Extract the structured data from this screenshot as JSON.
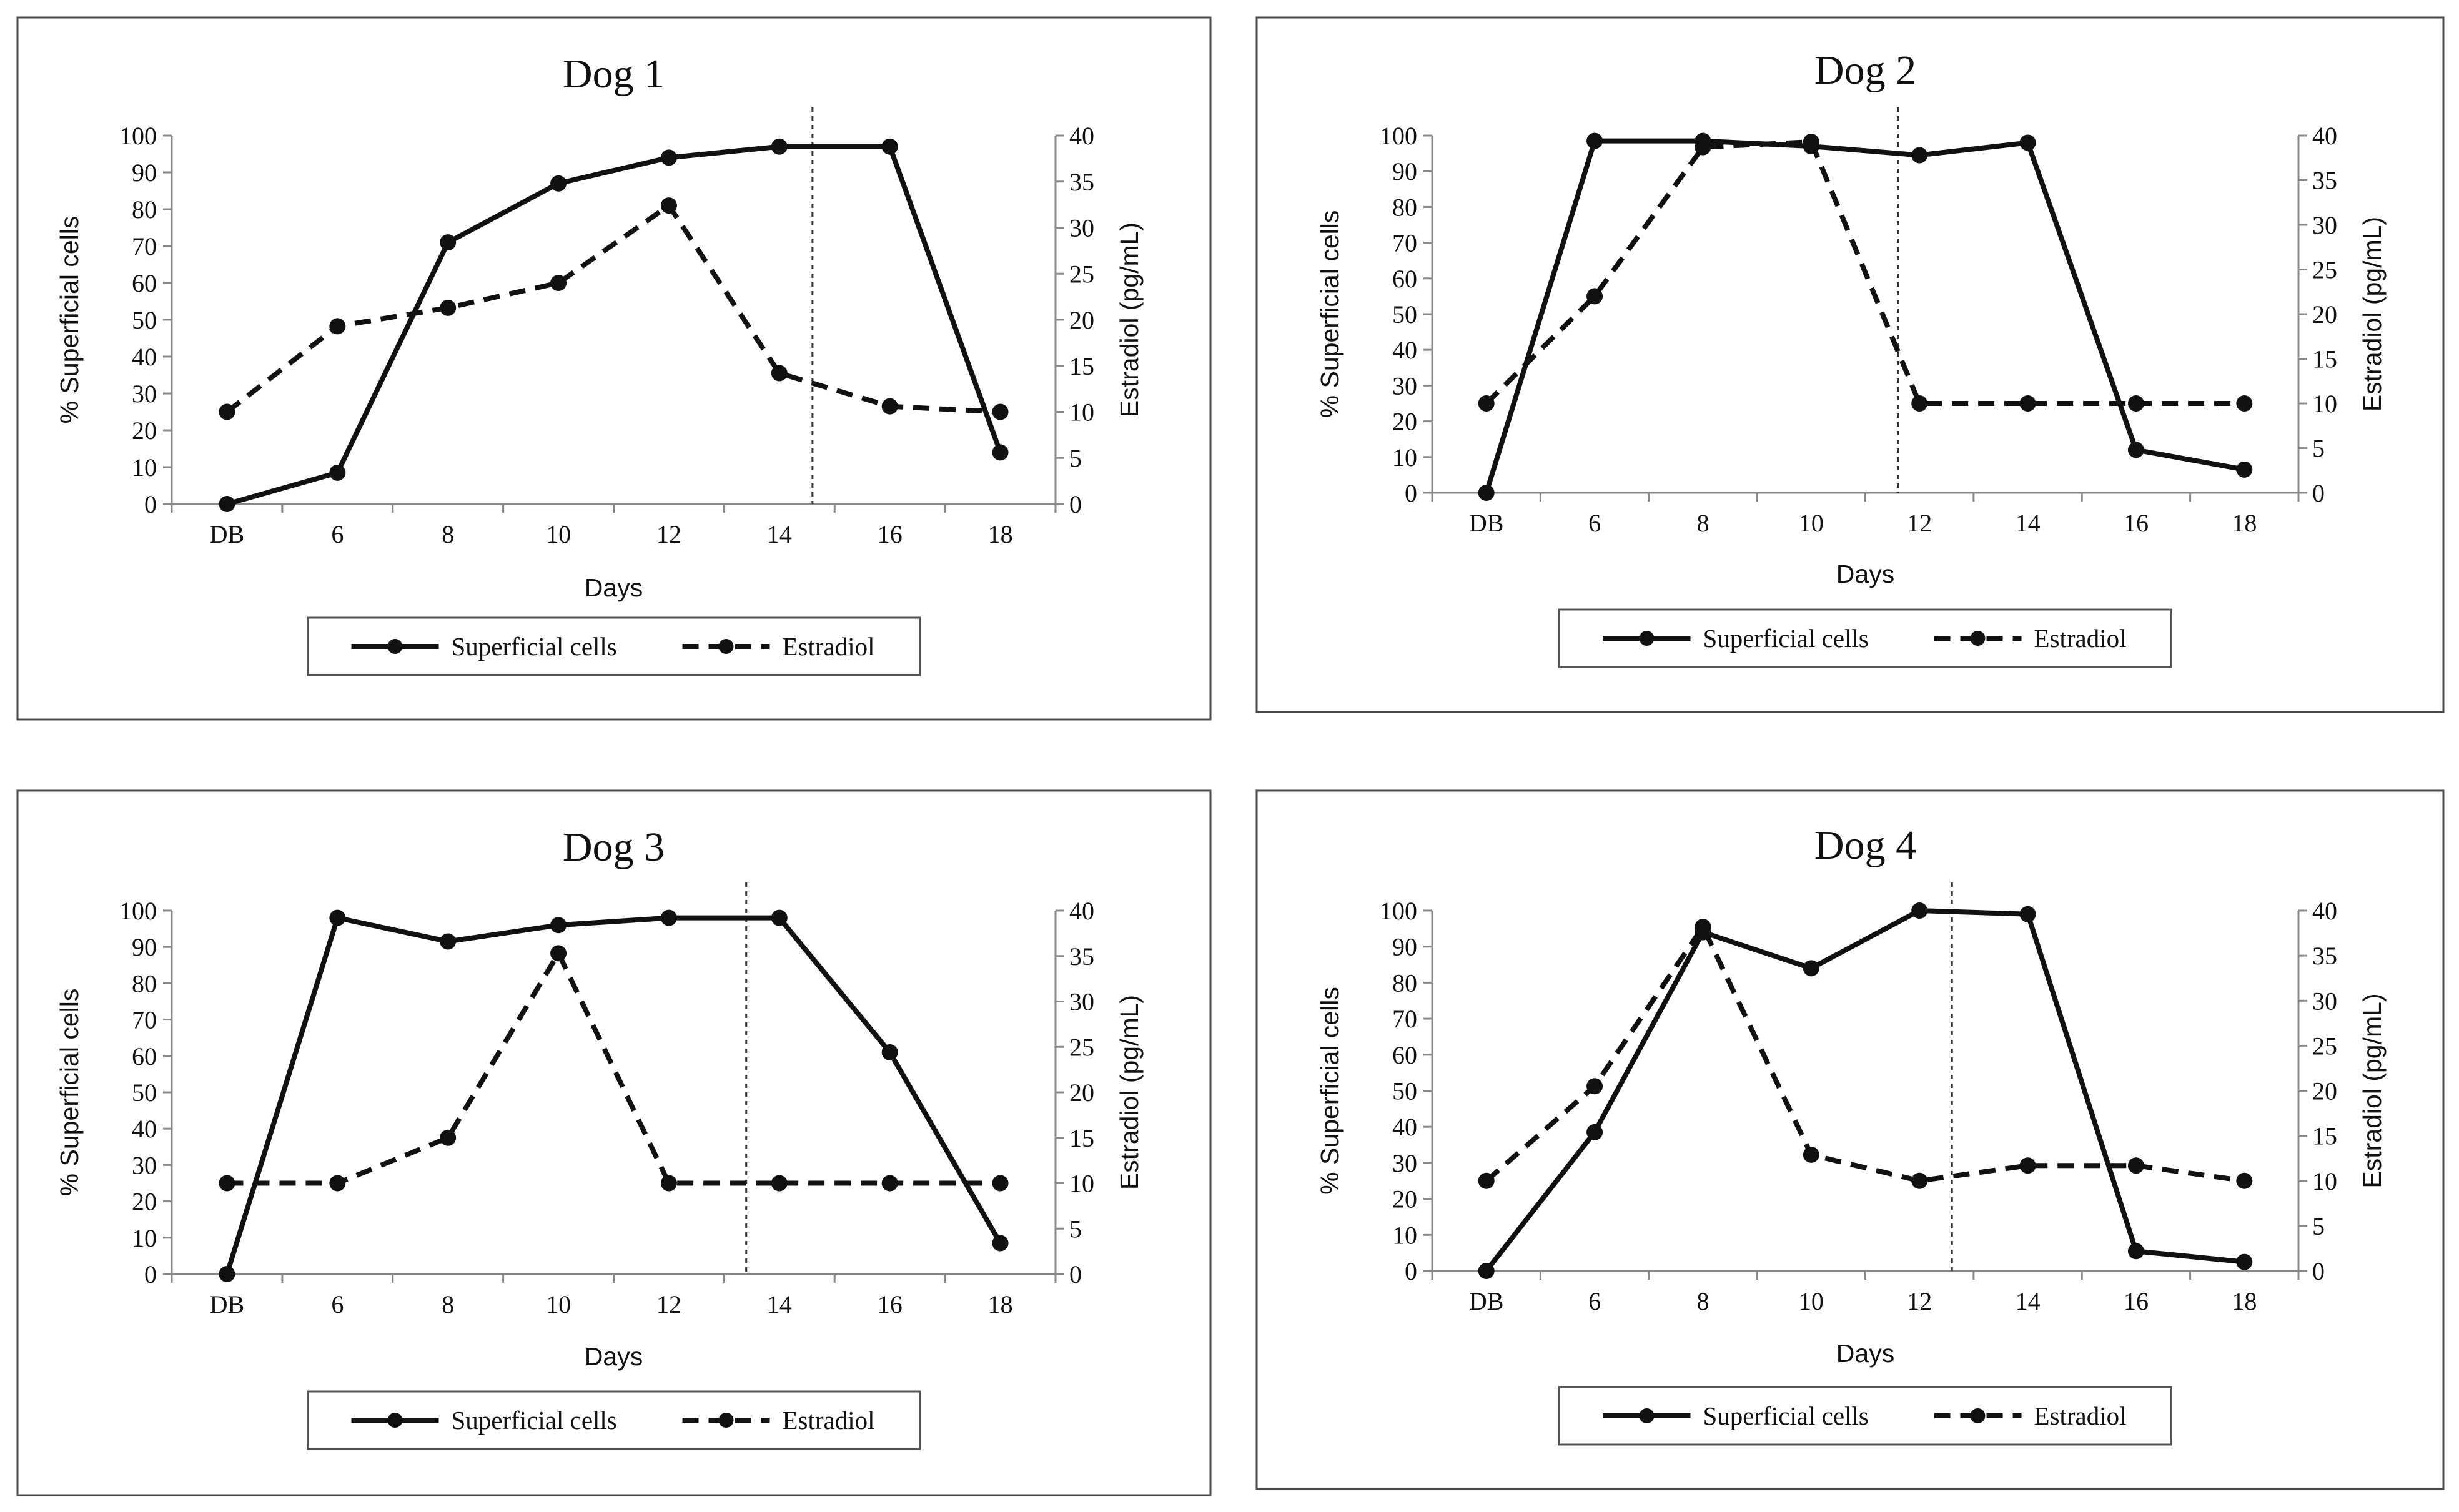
{
  "chart_data": [
    {
      "type": "line",
      "title": "Dog 1",
      "categories": [
        "DB",
        "6",
        "8",
        "10",
        "12",
        "14",
        "16",
        "18"
      ],
      "xlabel": "Days",
      "ylabel": "% Superficial cells",
      "y2label": "Estradiol (pg/mL)",
      "ylim": [
        0,
        100
      ],
      "y2lim": [
        0,
        40
      ],
      "yticks": [
        "0",
        "10",
        "20",
        "30",
        "40",
        "50",
        "60",
        "70",
        "80",
        "90",
        "100"
      ],
      "y2ticks": [
        "0",
        "5",
        "10",
        "15",
        "20",
        "25",
        "30",
        "35",
        "40"
      ],
      "series": [
        {
          "name": "Superficial cells",
          "axis": "left",
          "style": "solid",
          "values": [
            0,
            8.5,
            71,
            87,
            94,
            97,
            97,
            14
          ]
        },
        {
          "name": "Estradiol",
          "axis": "right",
          "style": "dashed",
          "values": [
            10,
            19.3,
            21.3,
            24,
            32.4,
            14.2,
            10.6,
            10
          ]
        }
      ],
      "vline_x_days": 14.6,
      "legend": "bottom"
    },
    {
      "type": "line",
      "title": "Dog 2",
      "categories": [
        "DB",
        "6",
        "8",
        "10",
        "12",
        "14",
        "16",
        "18"
      ],
      "xlabel": "Days",
      "ylabel": "% Superficial cells",
      "y2label": "Estradiol (pg/mL)",
      "ylim": [
        0,
        100
      ],
      "y2lim": [
        0,
        40
      ],
      "yticks": [
        "0",
        "10",
        "20",
        "30",
        "40",
        "50",
        "60",
        "70",
        "80",
        "90",
        "100"
      ],
      "y2ticks": [
        "0",
        "5",
        "10",
        "15",
        "20",
        "25",
        "30",
        "35",
        "40"
      ],
      "series": [
        {
          "name": "Superficial cells",
          "axis": "left",
          "style": "solid",
          "values": [
            0,
            98.5,
            98.5,
            97,
            94.5,
            98,
            12,
            6.5
          ]
        },
        {
          "name": "Estradiol",
          "axis": "right",
          "style": "dashed",
          "values": [
            10,
            22,
            38.7,
            39.3,
            10,
            10,
            10,
            10
          ]
        }
      ],
      "vline_x_days": 11.6,
      "legend": "bottom"
    },
    {
      "type": "line",
      "title": "Dog 3",
      "categories": [
        "DB",
        "6",
        "8",
        "10",
        "12",
        "14",
        "16",
        "18"
      ],
      "xlabel": "Days",
      "ylabel": "% Superficial cells",
      "y2label": "Estradiol (pg/mL)",
      "ylim": [
        0,
        100
      ],
      "y2lim": [
        0,
        40
      ],
      "yticks": [
        "0",
        "10",
        "20",
        "30",
        "40",
        "50",
        "60",
        "70",
        "80",
        "90",
        "100"
      ],
      "y2ticks": [
        "0",
        "5",
        "10",
        "15",
        "20",
        "25",
        "30",
        "35",
        "40"
      ],
      "series": [
        {
          "name": "Superficial cells",
          "axis": "left",
          "style": "solid",
          "values": [
            0,
            98,
            91.5,
            96,
            98,
            98,
            61,
            8.5
          ]
        },
        {
          "name": "Estradiol",
          "axis": "right",
          "style": "dashed",
          "values": [
            10,
            10,
            15,
            35.3,
            10,
            10,
            10,
            10
          ]
        }
      ],
      "vline_x_days": 13.4,
      "legend": "bottom"
    },
    {
      "type": "line",
      "title": "Dog 4",
      "categories": [
        "DB",
        "6",
        "8",
        "10",
        "12",
        "14",
        "16",
        "18"
      ],
      "xlabel": "Days",
      "ylabel": "% Superficial cells",
      "y2label": "Estradiol (pg/mL)",
      "ylim": [
        0,
        100
      ],
      "y2lim": [
        0,
        40
      ],
      "yticks": [
        "0",
        "10",
        "20",
        "30",
        "40",
        "50",
        "60",
        "70",
        "80",
        "90",
        "100"
      ],
      "y2ticks": [
        "0",
        "5",
        "10",
        "15",
        "20",
        "25",
        "30",
        "35",
        "40"
      ],
      "series": [
        {
          "name": "Superficial cells",
          "axis": "left",
          "style": "solid",
          "values": [
            0,
            38.5,
            94,
            84,
            100,
            99,
            5.5,
            2.5
          ]
        },
        {
          "name": "Estradiol",
          "axis": "right",
          "style": "dashed",
          "values": [
            10,
            20.5,
            38.2,
            12.9,
            10,
            11.7,
            11.7,
            10
          ]
        }
      ],
      "vline_x_days": 12.6,
      "legend": "bottom"
    }
  ]
}
